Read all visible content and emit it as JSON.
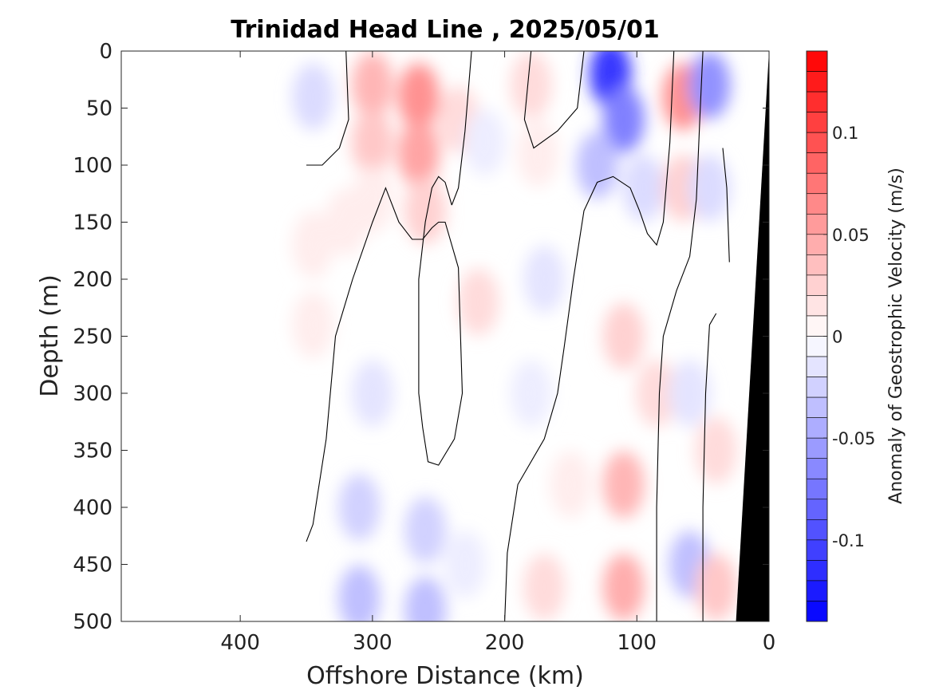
{
  "chart_data": {
    "type": "heatmap",
    "title": "Trinidad Head Line , 2025/05/01",
    "xlabel": "Offshore Distance (km)",
    "ylabel": "Depth (m)",
    "xlim": [
      490,
      0
    ],
    "ylim": [
      500,
      0
    ],
    "x_reversed": true,
    "y_reversed": true,
    "xticks": [
      400,
      300,
      200,
      100,
      0
    ],
    "yticks": [
      0,
      50,
      100,
      150,
      200,
      250,
      300,
      350,
      400,
      450,
      500
    ],
    "colorbar": {
      "label": "Anomaly of Geostrophic Velocity (m/s)",
      "range": [
        -0.14,
        0.14
      ],
      "step": 0.01,
      "ticks": [
        0.1,
        0.05,
        0,
        -0.05,
        -0.1
      ],
      "tick_labels": [
        "0.1",
        "0.05",
        "0",
        "-0.05",
        "-0.1"
      ],
      "positive_color": "#ff0000",
      "negative_color": "#0000ff",
      "zero_color": "#ffffff"
    },
    "data_extent_km": [
      350,
      0
    ],
    "bathymetry": {
      "color": "#000000",
      "points": [
        [
          0,
          0
        ],
        [
          25,
          500
        ]
      ]
    },
    "anomaly_points": [
      {
        "x": 345,
        "y": 40,
        "v": -0.02
      },
      {
        "x": 345,
        "y": 170,
        "v": 0.01
      },
      {
        "x": 345,
        "y": 240,
        "v": 0.01
      },
      {
        "x": 300,
        "y": 30,
        "v": 0.04
      },
      {
        "x": 300,
        "y": 80,
        "v": 0.03
      },
      {
        "x": 300,
        "y": 130,
        "v": 0.01
      },
      {
        "x": 265,
        "y": 40,
        "v": 0.06
      },
      {
        "x": 265,
        "y": 90,
        "v": 0.05
      },
      {
        "x": 260,
        "y": 140,
        "v": 0.025
      },
      {
        "x": 320,
        "y": 150,
        "v": 0.01
      },
      {
        "x": 235,
        "y": 60,
        "v": 0.02
      },
      {
        "x": 215,
        "y": 80,
        "v": -0.01
      },
      {
        "x": 180,
        "y": 30,
        "v": 0.02
      },
      {
        "x": 175,
        "y": 90,
        "v": 0.01
      },
      {
        "x": 120,
        "y": 20,
        "v": -0.11
      },
      {
        "x": 110,
        "y": 60,
        "v": -0.07
      },
      {
        "x": 130,
        "y": 100,
        "v": -0.035
      },
      {
        "x": 95,
        "y": 120,
        "v": -0.02
      },
      {
        "x": 65,
        "y": 40,
        "v": 0.06
      },
      {
        "x": 65,
        "y": 120,
        "v": 0.025
      },
      {
        "x": 45,
        "y": 30,
        "v": -0.06
      },
      {
        "x": 45,
        "y": 120,
        "v": -0.02
      },
      {
        "x": 220,
        "y": 220,
        "v": 0.02
      },
      {
        "x": 170,
        "y": 200,
        "v": -0.015
      },
      {
        "x": 180,
        "y": 300,
        "v": -0.01
      },
      {
        "x": 300,
        "y": 300,
        "v": -0.015
      },
      {
        "x": 310,
        "y": 400,
        "v": -0.025
      },
      {
        "x": 310,
        "y": 480,
        "v": -0.035
      },
      {
        "x": 260,
        "y": 420,
        "v": -0.025
      },
      {
        "x": 260,
        "y": 490,
        "v": -0.035
      },
      {
        "x": 230,
        "y": 450,
        "v": -0.01
      },
      {
        "x": 110,
        "y": 250,
        "v": 0.025
      },
      {
        "x": 110,
        "y": 380,
        "v": 0.04
      },
      {
        "x": 110,
        "y": 470,
        "v": 0.045
      },
      {
        "x": 85,
        "y": 300,
        "v": 0.02
      },
      {
        "x": 170,
        "y": 470,
        "v": 0.02
      },
      {
        "x": 150,
        "y": 380,
        "v": 0.01
      },
      {
        "x": 60,
        "y": 300,
        "v": -0.015
      },
      {
        "x": 60,
        "y": 450,
        "v": -0.035
      },
      {
        "x": 40,
        "y": 350,
        "v": 0.02
      },
      {
        "x": 40,
        "y": 470,
        "v": 0.03
      },
      {
        "x": 195,
        "y": 400,
        "v": 0.0
      }
    ],
    "zero_contours": [
      [
        [
          350,
          100
        ],
        [
          338,
          100
        ],
        [
          325,
          85
        ],
        [
          318,
          60
        ],
        [
          320,
          0
        ]
      ],
      [
        [
          350,
          430
        ],
        [
          345,
          415
        ],
        [
          335,
          340
        ],
        [
          328,
          250
        ],
        [
          315,
          200
        ],
        [
          300,
          150
        ],
        [
          290,
          120
        ],
        [
          280,
          150
        ],
        [
          270,
          165
        ],
        [
          262,
          165
        ],
        [
          255,
          155
        ],
        [
          250,
          150
        ],
        [
          245,
          150
        ],
        [
          235,
          190
        ],
        [
          232,
          300
        ],
        [
          238,
          340
        ],
        [
          250,
          363
        ],
        [
          258,
          360
        ],
        [
          262,
          330
        ],
        [
          265,
          300
        ],
        [
          265,
          200
        ],
        [
          260,
          150
        ],
        [
          255,
          120
        ],
        [
          250,
          110
        ],
        [
          245,
          115
        ],
        [
          240,
          135
        ]
      ],
      [
        [
          240,
          135
        ],
        [
          235,
          120
        ],
        [
          230,
          70
        ],
        [
          225,
          0
        ]
      ],
      [
        [
          180,
          0
        ],
        [
          185,
          60
        ],
        [
          178,
          85
        ],
        [
          160,
          70
        ],
        [
          145,
          50
        ],
        [
          140,
          0
        ]
      ],
      [
        [
          200,
          500
        ],
        [
          198,
          440
        ],
        [
          190,
          380
        ],
        [
          170,
          340
        ],
        [
          160,
          300
        ],
        [
          155,
          260
        ],
        [
          148,
          200
        ],
        [
          140,
          140
        ],
        [
          130,
          115
        ],
        [
          118,
          110
        ],
        [
          105,
          120
        ],
        [
          98,
          140
        ],
        [
          92,
          160
        ],
        [
          85,
          170
        ],
        [
          80,
          150
        ],
        [
          75,
          80
        ],
        [
          72,
          0
        ]
      ],
      [
        [
          85,
          500
        ],
        [
          85,
          400
        ],
        [
          83,
          300
        ],
        [
          80,
          250
        ],
        [
          70,
          210
        ],
        [
          60,
          180
        ],
        [
          55,
          130
        ],
        [
          52,
          50
        ],
        [
          50,
          0
        ]
      ],
      [
        [
          50,
          500
        ],
        [
          50,
          400
        ],
        [
          48,
          300
        ],
        [
          45,
          240
        ],
        [
          40,
          230
        ]
      ],
      [
        [
          30,
          185
        ],
        [
          32,
          120
        ],
        [
          35,
          85
        ]
      ]
    ]
  }
}
